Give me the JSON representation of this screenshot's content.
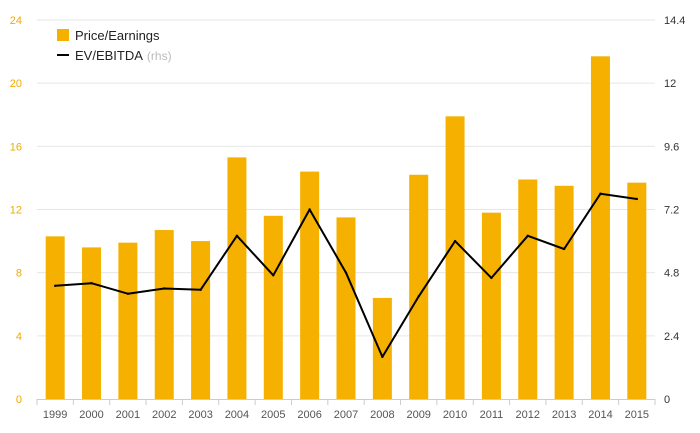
{
  "colors": {
    "bar": "#F5B000",
    "line": "#000000",
    "grid": "#e6e6e6",
    "left_tick": "#F2A900",
    "right_tick": "#333333"
  },
  "legend": {
    "bar_label": "Price/Earnings",
    "line_label": "EV/EBITDA",
    "line_suffix": "(rhs)"
  },
  "chart_data": {
    "type": "bar",
    "categories": [
      "1999",
      "2000",
      "2001",
      "2002",
      "2003",
      "2004",
      "2005",
      "2006",
      "2007",
      "2008",
      "2009",
      "2010",
      "2011",
      "2012",
      "2013",
      "2014",
      "2015"
    ],
    "series": [
      {
        "name": "Price/Earnings",
        "type": "bar",
        "axis": "left",
        "values": [
          10.3,
          9.6,
          9.9,
          10.7,
          10.0,
          15.3,
          11.6,
          14.4,
          11.5,
          6.4,
          14.2,
          17.9,
          11.8,
          13.9,
          13.5,
          21.7,
          13.7
        ]
      },
      {
        "name": "EV/EBITDA",
        "type": "line",
        "axis": "right",
        "values": [
          4.3,
          4.4,
          4.0,
          4.2,
          4.15,
          6.2,
          4.7,
          7.2,
          4.8,
          1.6,
          3.9,
          6.0,
          4.6,
          6.2,
          5.7,
          7.8,
          7.6
        ]
      }
    ],
    "y_left": {
      "min": 0,
      "max": 24,
      "ticks": [
        "0",
        "4",
        "8",
        "12",
        "16",
        "20",
        "24"
      ]
    },
    "y_right": {
      "min": 0,
      "max": 14.4,
      "ticks": [
        "0",
        "2.4",
        "4.8",
        "7.2",
        "9.6",
        "12",
        "14.4"
      ]
    },
    "grid": true,
    "legend_position": "top-left"
  }
}
